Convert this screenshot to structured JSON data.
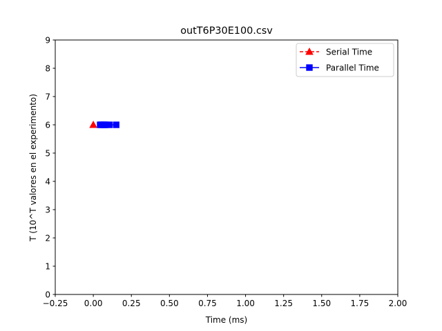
{
  "chart_data": {
    "type": "scatter",
    "title": "outT6P30E100.csv",
    "xlabel": "Time (ms)",
    "ylabel": "T (10^T valores en el experimento)",
    "xlim": [
      -0.25,
      2.0
    ],
    "ylim": [
      0,
      9
    ],
    "xticks": [
      -0.25,
      0.0,
      0.25,
      0.5,
      0.75,
      1.0,
      1.25,
      1.5,
      1.75,
      2.0
    ],
    "xtick_labels": [
      "−0.25",
      "0.00",
      "0.25",
      "0.50",
      "0.75",
      "1.00",
      "1.25",
      "1.50",
      "1.75",
      "2.00"
    ],
    "yticks": [
      0,
      1,
      2,
      3,
      4,
      5,
      6,
      7,
      8,
      9
    ],
    "ytick_labels": [
      "0",
      "1",
      "2",
      "3",
      "4",
      "5",
      "6",
      "7",
      "8",
      "9"
    ],
    "grid": false,
    "legend_position": "top-right",
    "series": [
      {
        "name": "Serial Time",
        "color": "#ff0000",
        "marker": "triangle-up",
        "line_style": "dashed",
        "x": [
          0.0
        ],
        "y": [
          6
        ]
      },
      {
        "name": "Parallel Time",
        "color": "#0000ff",
        "marker": "square",
        "line_style": "solid",
        "x": [
          0.045,
          0.055,
          0.065,
          0.07,
          0.08,
          0.105,
          0.15
        ],
        "y": [
          6,
          6,
          6,
          6,
          6,
          6,
          6
        ]
      }
    ]
  }
}
